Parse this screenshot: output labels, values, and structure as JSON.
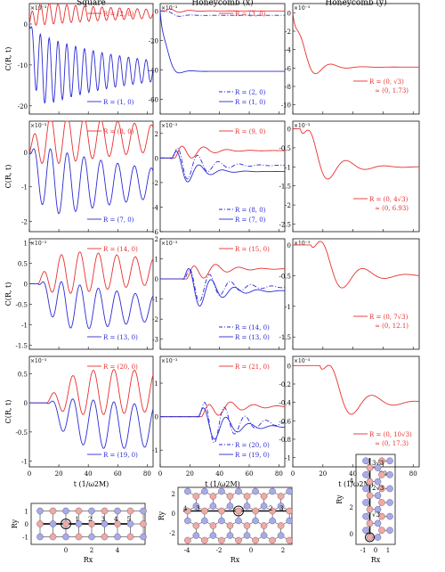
{
  "columns": [
    "Square",
    "Honeycomb (x)",
    "Honeycomb (y)"
  ],
  "xlabel": "t (1/ω2M)",
  "ylabel": "C(R, t)",
  "time_ticks": [
    "0",
    "20",
    "40",
    "60",
    "80"
  ],
  "colors": {
    "red": "#e8302e",
    "blue": "#2b2bd6",
    "dark": "#111111",
    "site_red": "#f3a7a7",
    "site_blue": "#a9a9ee"
  },
  "chart_data": [
    {
      "type": "line",
      "panel": "square-row1",
      "exponent": "×10⁻³",
      "ylim": [
        -22,
        5
      ],
      "yticks": [
        "0",
        "-10",
        "-20"
      ],
      "series": [
        {
          "name": "R = (2, 0)",
          "style": "solid",
          "color": "red",
          "base": 2.5,
          "amp": 3,
          "omega": 1.05,
          "decay": 0.012,
          "delay": 0,
          "rise": 2
        },
        {
          "name": "R = (1, 0)",
          "style": "solid",
          "color": "blue",
          "base": -11.5,
          "amp": 10,
          "omega": 1.05,
          "decay": 0.016,
          "delay": 0,
          "rise": 3
        }
      ]
    },
    {
      "type": "line",
      "panel": "honeyx-row1",
      "exponent": "×10⁻³",
      "ylim": [
        -70,
        5
      ],
      "yticks": [
        "0",
        "-20",
        "-40",
        "-60"
      ],
      "series": [
        {
          "name": "R = (3, 0)",
          "style": "solid",
          "color": "red",
          "base": 0,
          "amp": 3,
          "omega": 0.45,
          "decay": 0.12,
          "delay": 3,
          "rise": 3
        },
        {
          "name": "R = (2, 0)",
          "style": "dashdot",
          "color": "blue",
          "base": -3,
          "amp": 4,
          "omega": 0.4,
          "decay": 0.15,
          "delay": 2,
          "rise": 3
        },
        {
          "name": "R = (1, 0)",
          "style": "solid",
          "color": "blue",
          "base": -41,
          "amp": 22,
          "omega": 0.35,
          "decay": 0.2,
          "delay": 0,
          "rise": 3
        }
      ]
    },
    {
      "type": "line",
      "panel": "honeyy-row1",
      "exponent": "×10⁻³",
      "ylim": [
        -11,
        1
      ],
      "yticks": [
        "0",
        "-2",
        "-4",
        "-6",
        "-8",
        "-10"
      ],
      "series": [
        {
          "name": "R = (0, √3) ≈ (0, 1.73)",
          "style": "solid",
          "color": "red",
          "base": -5.9,
          "amp": 4,
          "omega": 0.3,
          "decay": 0.1,
          "delay": 0,
          "rise": 4
        }
      ]
    },
    {
      "type": "line",
      "panel": "square-row2",
      "exponent": "×10⁻³",
      "ylim": [
        -2.3,
        0.9
      ],
      "yticks": [
        "0",
        "-1",
        "-2"
      ],
      "series": [
        {
          "name": "R = (8, 0)",
          "style": "solid",
          "color": "red",
          "base": 0.4,
          "amp": 0.9,
          "omega": 0.55,
          "decay": 0.01,
          "delay": 0,
          "rise": 6
        },
        {
          "name": "R = (7, 0)",
          "style": "solid",
          "color": "blue",
          "base": -0.9,
          "amp": 1.2,
          "omega": 0.55,
          "decay": 0.012,
          "delay": 0,
          "rise": 6
        }
      ]
    },
    {
      "type": "line",
      "panel": "honeyx-row2",
      "exponent": "×10⁻³",
      "ylim": [
        -6,
        3
      ],
      "yticks": [
        "2",
        "0",
        "-2",
        "-4",
        "-6"
      ],
      "series": [
        {
          "name": "R = (9, 0)",
          "style": "solid",
          "color": "red",
          "base": 0.6,
          "amp": 1.5,
          "omega": 0.4,
          "decay": 0.08,
          "delay": 10,
          "rise": 5
        },
        {
          "name": "R = (8, 0)",
          "style": "dashdot",
          "color": "blue",
          "base": -0.6,
          "amp": 2.8,
          "omega": 0.45,
          "decay": 0.07,
          "delay": 8,
          "rise": 5
        },
        {
          "name": "R = (7, 0)",
          "style": "solid",
          "color": "blue",
          "base": -1.1,
          "amp": 3,
          "omega": 0.4,
          "decay": 0.09,
          "delay": 7,
          "rise": 5
        }
      ]
    },
    {
      "type": "line",
      "panel": "honeyy-row2",
      "exponent": "×10⁻³",
      "ylim": [
        -2.7,
        0.2
      ],
      "yticks": [
        "0",
        "-0.5",
        "-1",
        "-1.5",
        "-2",
        "-2.5"
      ],
      "series": [
        {
          "name": "R = (0, 4√3) ≈ (0, 6.93)",
          "style": "solid",
          "color": "red",
          "base": -1.0,
          "amp": 1.4,
          "omega": 0.25,
          "decay": 0.07,
          "delay": 5,
          "rise": 6
        }
      ]
    },
    {
      "type": "line",
      "panel": "square-row3",
      "exponent": "×10⁻³",
      "ylim": [
        -1.6,
        1.1
      ],
      "yticks": [
        "1",
        "0.5",
        "0",
        "-0.5",
        "-1",
        "-1.5"
      ],
      "series": [
        {
          "name": "R = (14, 0)",
          "style": "solid",
          "color": "red",
          "base": 0.3,
          "amp": 0.7,
          "omega": 0.5,
          "decay": 0.01,
          "delay": 6,
          "rise": 10
        },
        {
          "name": "R = (13, 0)",
          "style": "solid",
          "color": "blue",
          "base": -0.6,
          "amp": 0.8,
          "omega": 0.5,
          "decay": 0.012,
          "delay": 6,
          "rise": 10
        }
      ]
    },
    {
      "type": "line",
      "panel": "honeyx-row3",
      "exponent": "×10⁻³",
      "ylim": [
        -3.5,
        2
      ],
      "yticks": [
        "2",
        "1",
        "0",
        "-1",
        "-2",
        "-3"
      ],
      "series": [
        {
          "name": "R = (15, 0)",
          "style": "solid",
          "color": "red",
          "base": 0.5,
          "amp": 1.0,
          "omega": 0.4,
          "decay": 0.07,
          "delay": 18,
          "rise": 6
        },
        {
          "name": "R = (14, 0)",
          "style": "dashdot",
          "color": "blue",
          "base": -0.4,
          "amp": 1.8,
          "omega": 0.45,
          "decay": 0.06,
          "delay": 16,
          "rise": 6
        },
        {
          "name": "R = (13, 0)",
          "style": "solid",
          "color": "blue",
          "base": -0.6,
          "amp": 2.2,
          "omega": 0.4,
          "decay": 0.07,
          "delay": 15,
          "rise": 6
        }
      ]
    },
    {
      "type": "line",
      "panel": "honeyy-row3",
      "exponent": "×10⁻³",
      "ylim": [
        -1.7,
        0.1
      ],
      "yticks": [
        "0",
        "-0.5",
        "-1",
        "-1.5"
      ],
      "series": [
        {
          "name": "R = (0, 7√3) ≈ (0, 12.1)",
          "style": "solid",
          "color": "red",
          "base": -0.5,
          "amp": 0.9,
          "omega": 0.22,
          "decay": 0.06,
          "delay": 12,
          "rise": 8
        }
      ]
    },
    {
      "type": "line",
      "panel": "square-row4",
      "exponent": "×10⁻³",
      "ylim": [
        -1.1,
        0.8
      ],
      "yticks": [
        "0.5",
        "0",
        "-0.5",
        "-1"
      ],
      "series": [
        {
          "name": "R = (20, 0)",
          "style": "solid",
          "color": "red",
          "base": 0.2,
          "amp": 0.5,
          "omega": 0.45,
          "decay": 0.005,
          "delay": 12,
          "rise": 14
        },
        {
          "name": "R = (19, 0)",
          "style": "solid",
          "color": "blue",
          "base": -0.4,
          "amp": 0.55,
          "omega": 0.45,
          "decay": 0.006,
          "delay": 12,
          "rise": 14
        }
      ]
    },
    {
      "type": "line",
      "panel": "honeyx-row4",
      "exponent": "×10⁻³",
      "ylim": [
        -1.5,
        1.8
      ],
      "yticks": [
        "1",
        "0",
        "-1"
      ],
      "series": [
        {
          "name": "R = (21, 0)",
          "style": "solid",
          "color": "red",
          "base": 0.3,
          "amp": 0.5,
          "omega": 0.4,
          "decay": 0.06,
          "delay": 28,
          "rise": 6
        },
        {
          "name": "R = (20, 0)",
          "style": "dashdot",
          "color": "blue",
          "base": -0.2,
          "amp": 1.4,
          "omega": 0.45,
          "decay": 0.06,
          "delay": 26,
          "rise": 6
        },
        {
          "name": "R = (19, 0)",
          "style": "solid",
          "color": "blue",
          "base": -0.3,
          "amp": 1.1,
          "omega": 0.4,
          "decay": 0.07,
          "delay": 25,
          "rise": 6
        }
      ]
    },
    {
      "type": "line",
      "panel": "honeyy-row4",
      "exponent": "×10⁻³",
      "ylim": [
        -1.1,
        0.1
      ],
      "yticks": [
        "0",
        "-0.2",
        "-0.4",
        "-0.6",
        "-0.8",
        "-1"
      ],
      "series": [
        {
          "name": "R = (0, 10√3) ≈ (0, 17.3)",
          "style": "solid",
          "color": "red",
          "base": -0.4,
          "amp": 0.6,
          "omega": 0.22,
          "decay": 0.06,
          "delay": 18,
          "rise": 8
        }
      ]
    }
  ],
  "lattices": {
    "square": {
      "xlabel": "Rx",
      "ylabel": "Ry",
      "xticks": [
        "0",
        "2",
        "4"
      ],
      "yticks": [
        "1",
        "0",
        "-1"
      ],
      "site_labels": [
        "1",
        "2",
        "3",
        "4",
        "5"
      ]
    },
    "honeycomb_x": {
      "xlabel": "Rx",
      "ylabel": "Ry",
      "xticks": [
        "-4",
        "-2",
        "0",
        "2"
      ],
      "yticks": [
        "2",
        "0",
        "-2"
      ],
      "site_labels": [
        "4",
        "3",
        "2",
        "3"
      ]
    },
    "honeycomb_y": {
      "xlabel": "Rx",
      "ylabel": "Ry",
      "xticks": [
        "-1",
        "0",
        "1"
      ],
      "yticks": [
        "4",
        "2",
        "0"
      ],
      "site_labels": [
        "3√3",
        "2√3",
        "√3"
      ]
    }
  }
}
